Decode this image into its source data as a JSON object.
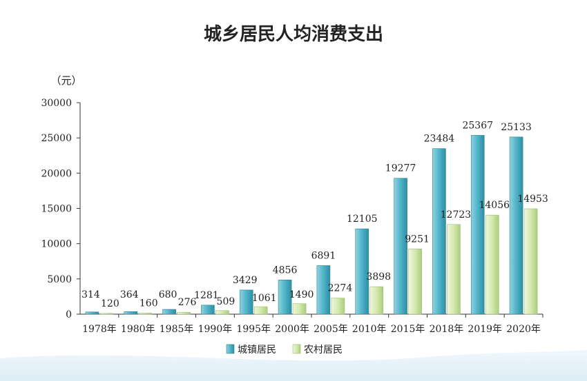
{
  "chart_data": {
    "type": "bar",
    "title": "城乡居民人均消费支出",
    "ylabel": "（元）",
    "xlabel": "",
    "ylim": [
      0,
      30000
    ],
    "yticks": [
      0,
      5000,
      10000,
      15000,
      20000,
      25000,
      30000
    ],
    "categories": [
      "1978年",
      "1980年",
      "1985年",
      "1990年",
      "1995年",
      "2000年",
      "2005年",
      "2010年",
      "2015年",
      "2018年",
      "2019年",
      "2020年"
    ],
    "series": [
      {
        "name": "城镇居民",
        "color": "#4fb3c8",
        "values": [
          314,
          364,
          680,
          1281,
          3429,
          4856,
          6891,
          12105,
          19277,
          23484,
          25367,
          25133
        ]
      },
      {
        "name": "农村居民",
        "color": "#cfe6a8",
        "values": [
          120,
          160,
          276,
          509,
          1061,
          1490,
          2274,
          3898,
          9251,
          12723,
          14056,
          14953
        ]
      }
    ],
    "legend_position": "bottom-center",
    "grid": false
  }
}
